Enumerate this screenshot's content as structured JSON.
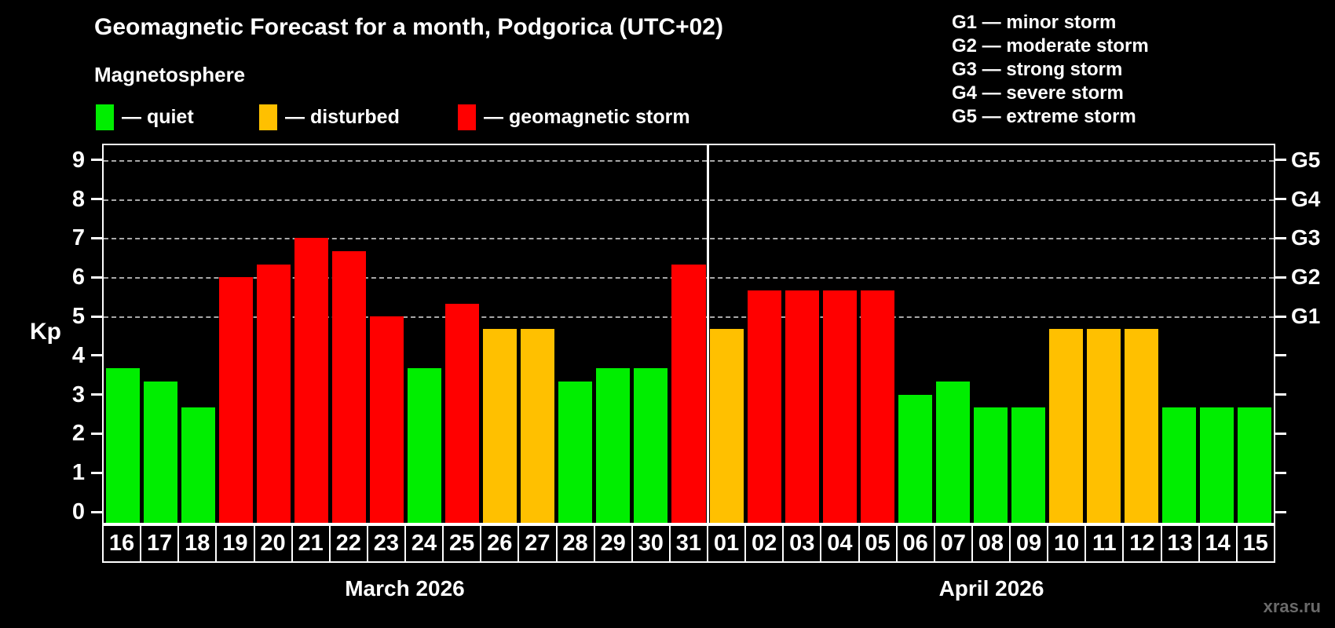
{
  "title": "Geomagnetic Forecast for a month, Podgorica (UTC+02)",
  "subtitle": "Magnetosphere",
  "legend": {
    "items": [
      {
        "label": "— quiet",
        "status": "quiet"
      },
      {
        "label": "— disturbed",
        "status": "disturbed"
      },
      {
        "label": "— geomagnetic storm",
        "status": "storm"
      }
    ]
  },
  "g_scale_legend": [
    "G1 — minor storm",
    "G2 — moderate storm",
    "G3 — strong storm",
    "G4 — severe storm",
    "G5 — extreme storm"
  ],
  "watermark": "xras.ru",
  "colors": {
    "quiet": "#00ee00",
    "disturbed": "#ffc000",
    "storm": "#ff0000",
    "axis": "#ffffff",
    "grid": "#a8a8a8",
    "watermark": "#6a6a6a",
    "background": "#000000"
  },
  "chart_data": {
    "type": "bar",
    "ylabel": "Kp",
    "ylim": [
      -0.28,
      9.38
    ],
    "y_ticks": [
      0,
      1,
      2,
      3,
      4,
      5,
      6,
      7,
      8,
      9
    ],
    "grid_levels": [
      5,
      6,
      7,
      8,
      9
    ],
    "g_levels": [
      {
        "label": "G1",
        "kp": 5
      },
      {
        "label": "G2",
        "kp": 6
      },
      {
        "label": "G3",
        "kp": 7
      },
      {
        "label": "G4",
        "kp": 8
      },
      {
        "label": "G5",
        "kp": 9
      }
    ],
    "months": [
      {
        "label": "March 2026",
        "days": 16
      },
      {
        "label": "April 2026",
        "days": 15
      }
    ],
    "days": [
      {
        "day": "16",
        "kp": 3.67,
        "status": "quiet"
      },
      {
        "day": "17",
        "kp": 3.33,
        "status": "quiet"
      },
      {
        "day": "18",
        "kp": 2.67,
        "status": "quiet"
      },
      {
        "day": "19",
        "kp": 6.0,
        "status": "storm"
      },
      {
        "day": "20",
        "kp": 6.33,
        "status": "storm"
      },
      {
        "day": "21",
        "kp": 7.0,
        "status": "storm"
      },
      {
        "day": "22",
        "kp": 6.67,
        "status": "storm"
      },
      {
        "day": "23",
        "kp": 5.0,
        "status": "storm"
      },
      {
        "day": "24",
        "kp": 3.67,
        "status": "quiet"
      },
      {
        "day": "25",
        "kp": 5.33,
        "status": "storm"
      },
      {
        "day": "26",
        "kp": 4.67,
        "status": "disturbed"
      },
      {
        "day": "27",
        "kp": 4.67,
        "status": "disturbed"
      },
      {
        "day": "28",
        "kp": 3.33,
        "status": "quiet"
      },
      {
        "day": "29",
        "kp": 3.67,
        "status": "quiet"
      },
      {
        "day": "30",
        "kp": 3.67,
        "status": "quiet"
      },
      {
        "day": "31",
        "kp": 6.33,
        "status": "storm"
      },
      {
        "day": "01",
        "kp": 4.67,
        "status": "disturbed"
      },
      {
        "day": "02",
        "kp": 5.67,
        "status": "storm"
      },
      {
        "day": "03",
        "kp": 5.67,
        "status": "storm"
      },
      {
        "day": "04",
        "kp": 5.67,
        "status": "storm"
      },
      {
        "day": "05",
        "kp": 5.67,
        "status": "storm"
      },
      {
        "day": "06",
        "kp": 3.0,
        "status": "quiet"
      },
      {
        "day": "07",
        "kp": 3.33,
        "status": "quiet"
      },
      {
        "day": "08",
        "kp": 2.67,
        "status": "quiet"
      },
      {
        "day": "09",
        "kp": 2.67,
        "status": "quiet"
      },
      {
        "day": "10",
        "kp": 4.67,
        "status": "disturbed"
      },
      {
        "day": "11",
        "kp": 4.67,
        "status": "disturbed"
      },
      {
        "day": "12",
        "kp": 4.67,
        "status": "disturbed"
      },
      {
        "day": "13",
        "kp": 2.67,
        "status": "quiet"
      },
      {
        "day": "14",
        "kp": 2.67,
        "status": "quiet"
      },
      {
        "day": "15",
        "kp": 2.67,
        "status": "quiet"
      }
    ]
  }
}
